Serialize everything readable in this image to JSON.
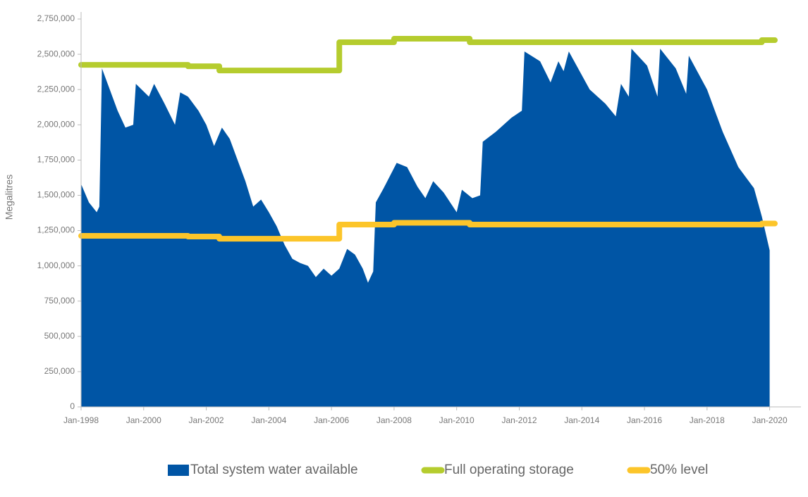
{
  "chart_data": {
    "type": "area",
    "y_label": "Megalitres",
    "xlim": [
      "1998-01",
      "2021-01"
    ],
    "ylim": [
      0,
      2750000
    ],
    "xticks": [
      {
        "value": "1998-01",
        "label": "Jan-1998"
      },
      {
        "value": "2000-01",
        "label": "Jan-2000"
      },
      {
        "value": "2002-01",
        "label": "Jan-2002"
      },
      {
        "value": "2004-01",
        "label": "Jan-2004"
      },
      {
        "value": "2006-01",
        "label": "Jan-2006"
      },
      {
        "value": "2008-01",
        "label": "Jan-2008"
      },
      {
        "value": "2010-01",
        "label": "Jan-2010"
      },
      {
        "value": "2012-01",
        "label": "Jan-2012"
      },
      {
        "value": "2014-01",
        "label": "Jan-2014"
      },
      {
        "value": "2016-01",
        "label": "Jan-2016"
      },
      {
        "value": "2018-01",
        "label": "Jan-2018"
      },
      {
        "value": "2020-01",
        "label": "Jan-2020"
      }
    ],
    "yticks": [
      0,
      {
        "value": 250000,
        "label": "250,000"
      },
      {
        "value": 500000,
        "label": "500,000"
      },
      {
        "value": 750000,
        "label": "750,000"
      },
      {
        "value": 1000000,
        "label": "1,000,000"
      },
      {
        "value": 1250000,
        "label": "1,250,000"
      },
      {
        "value": 1500000,
        "label": "1,500,000"
      },
      {
        "value": 1750000,
        "label": "1,750,000"
      },
      {
        "value": 2000000,
        "label": "2,000,000"
      },
      {
        "value": 2250000,
        "label": "2,250,000"
      },
      {
        "value": 2500000,
        "label": "2,500,000"
      },
      {
        "value": 2750000,
        "label": "2,750,000"
      }
    ],
    "series": [
      {
        "name": "Total system water available",
        "color": "#0055a5",
        "kind": "area",
        "x": [
          "1998-01",
          "1998-04",
          "1998-07",
          "1998-08",
          "1998-09",
          "1998-12",
          "1999-03",
          "1999-06",
          "1999-09",
          "1999-10",
          "2000-03",
          "2000-05",
          "2000-09",
          "2001-01",
          "2001-03",
          "2001-06",
          "2001-10",
          "2002-01",
          "2002-04",
          "2002-07",
          "2002-10",
          "2003-01",
          "2003-04",
          "2003-07",
          "2003-10",
          "2004-01",
          "2004-04",
          "2004-07",
          "2004-10",
          "2005-01",
          "2005-04",
          "2005-07",
          "2005-10",
          "2006-01",
          "2006-04",
          "2006-07",
          "2006-10",
          "2007-01",
          "2007-03",
          "2007-05",
          "2007-06",
          "2007-09",
          "2008-02",
          "2008-06",
          "2008-10",
          "2009-01",
          "2009-04",
          "2009-08",
          "2010-01",
          "2010-03",
          "2010-07",
          "2010-10",
          "2010-11",
          "2011-04",
          "2011-10",
          "2012-02",
          "2012-03",
          "2012-09",
          "2013-01",
          "2013-04",
          "2013-06",
          "2013-08",
          "2014-04",
          "2014-10",
          "2015-02",
          "2015-04",
          "2015-07",
          "2015-08",
          "2016-02",
          "2016-06",
          "2016-07",
          "2017-01",
          "2017-05",
          "2017-06",
          "2018-01",
          "2018-07",
          "2019-01",
          "2019-07",
          "2019-10",
          "2020-01"
        ],
        "values": [
          1580000,
          1450000,
          1380000,
          1420000,
          2400000,
          2250000,
          2100000,
          1980000,
          2000000,
          2290000,
          2200000,
          2290000,
          2150000,
          2000000,
          2230000,
          2200000,
          2100000,
          2000000,
          1850000,
          1980000,
          1900000,
          1750000,
          1600000,
          1420000,
          1470000,
          1380000,
          1280000,
          1150000,
          1050000,
          1020000,
          1000000,
          920000,
          980000,
          930000,
          980000,
          1120000,
          1080000,
          980000,
          880000,
          960000,
          1450000,
          1550000,
          1730000,
          1700000,
          1560000,
          1480000,
          1600000,
          1520000,
          1380000,
          1540000,
          1480000,
          1500000,
          1880000,
          1950000,
          2050000,
          2100000,
          2520000,
          2450000,
          2300000,
          2450000,
          2380000,
          2520000,
          2250000,
          2150000,
          2060000,
          2290000,
          2200000,
          2540000,
          2420000,
          2200000,
          2540000,
          2400000,
          2220000,
          2490000,
          2250000,
          1950000,
          1700000,
          1550000,
          1350000,
          1110000
        ]
      },
      {
        "name": "Full operating storage",
        "color": "#b5cc2e",
        "kind": "step",
        "x": [
          "1998-01",
          "2001-06",
          "2002-06",
          "2006-04",
          "2008-01",
          "2010-06",
          "2019-10",
          "2020-03"
        ],
        "values": [
          2425000,
          2415000,
          2385000,
          2585000,
          2610000,
          2585000,
          2600000,
          2600000
        ]
      },
      {
        "name": "50% level",
        "color": "#fcc52a",
        "kind": "step",
        "x": [
          "1998-01",
          "2001-06",
          "2002-06",
          "2006-04",
          "2008-01",
          "2010-06",
          "2019-10",
          "2020-03"
        ],
        "values": [
          1212500,
          1207500,
          1192500,
          1292500,
          1305000,
          1292500,
          1300000,
          1300000
        ]
      }
    ]
  }
}
